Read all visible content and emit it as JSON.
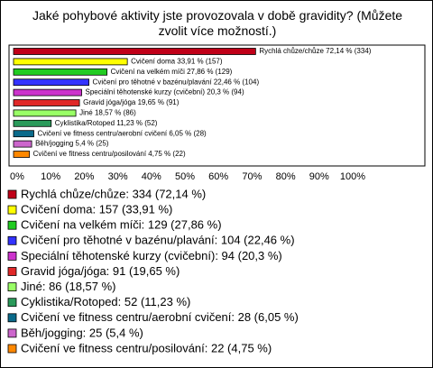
{
  "chart_data": {
    "type": "bar",
    "orientation": "horizontal",
    "title": "Jaké pohybové aktivity jste provozovala v době gravidity? (Můžete zvolit více možností.)",
    "categories": [
      "Rychlá chůze/chůze",
      "Cvičení doma",
      "Cvičení na velkém míči",
      "Cvičení pro těhotné v bazénu/plavání",
      "Speciální těhotenské kurzy (cvičební)",
      "Gravid jóga/jóga",
      "Jiné",
      "Cyklistika/Rotoped",
      "Cvičení ve fitness centru/aerobní cvičení",
      "Běh/jogging",
      "Cvičení ve fitness centru/posilování"
    ],
    "values": [
      72.14,
      33.91,
      27.86,
      22.46,
      20.3,
      19.65,
      18.57,
      11.23,
      6.05,
      5.4,
      4.75
    ],
    "value_labels": [
      "Rychlá chůze/chůze 72,14 % (334)",
      "Cvičení doma 33,91 % (157)",
      "Cvičení na velkém míči 27,86 % (129)",
      "Cvičení pro těhotné v bazénu/plavání 22,46 % (104)",
      "Speciální těhotenské kurzy (cvičební) 20,3 % (94)",
      "Gravid jóga/jóga 19,65 % (91)",
      "Jiné 18,57 % (86)",
      "Cyklistika/Rotoped 11,23 % (52)",
      "Cvičení ve fitness centru/aerobní cvičení 6,05 % (28)",
      "Běh/jogging 5,4 % (25)",
      "Cvičení ve fitness centru/posilování 4,75 % (22)"
    ],
    "legend_labels": [
      "Rychlá chůze/chůze: 334 (72,14 %)",
      "Cvičení doma: 157 (33,91 %)",
      "Cvičení na velkém míči: 129 (27,86 %)",
      "Cvičení pro těhotné v bazénu/plavání: 104 (22,46 %)",
      "Speciální těhotenské kurzy (cvičební): 94 (20,3 %)",
      "Gravid jóga/jóga: 91 (19,65 %)",
      "Jiné: 86 (18,57 %)",
      "Cyklistika/Rotoped: 52 (11,23 %)",
      "Cvičení ve fitness centru/aerobní cvičení: 28 (6,05 %)",
      "Běh/jogging: 25 (5,4 %)",
      "Cvičení ve fitness centru/posilování: 22 (4,75 %)"
    ],
    "colors": [
      "#c00018",
      "#ffff00",
      "#22cc22",
      "#3333ff",
      "#cc33cc",
      "#e02828",
      "#99ff66",
      "#2a9a5a",
      "#0a6a8a",
      "#cc66cc",
      "#ff8800"
    ],
    "xlim": [
      0,
      100
    ],
    "xticks": [
      {
        "value": 0,
        "label": "0%"
      },
      {
        "value": 10,
        "label": "10%"
      },
      {
        "value": 20,
        "label": "20%"
      },
      {
        "value": 30,
        "label": "30%"
      },
      {
        "value": 40,
        "label": "40%"
      },
      {
        "value": 50,
        "label": "50%"
      },
      {
        "value": 60,
        "label": "60%"
      },
      {
        "value": 70,
        "label": "70%"
      },
      {
        "value": 80,
        "label": "80%"
      },
      {
        "value": 90,
        "label": "90%"
      },
      {
        "value": 100,
        "label": "100%"
      }
    ],
    "grid": false
  }
}
